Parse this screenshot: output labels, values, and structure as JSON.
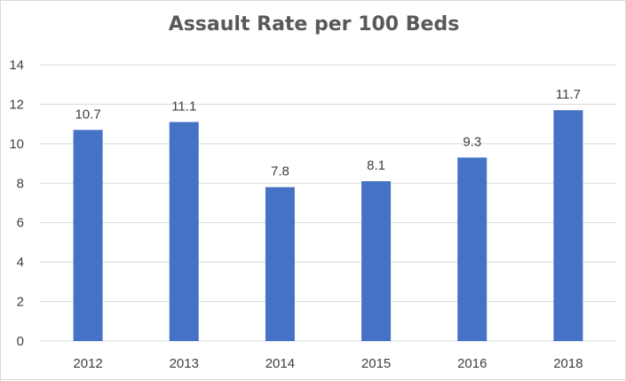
{
  "chart_data": {
    "type": "bar",
    "title": "Assault Rate per 100 Beds",
    "categories": [
      "2012",
      "2013",
      "2014",
      "2015",
      "2016",
      "2018"
    ],
    "values": [
      10.7,
      11.1,
      7.8,
      8.1,
      9.3,
      11.7
    ],
    "data_labels": [
      "10.7",
      "11.1",
      "7.8",
      "8.1",
      "9.3",
      "11.7"
    ],
    "xlabel": "",
    "ylabel": "",
    "ylim": [
      0,
      14
    ],
    "yticks": [
      0,
      2,
      4,
      6,
      8,
      10,
      12,
      14
    ],
    "grid": true,
    "legend": "none",
    "bar_color": "#4472C4",
    "grid_color": "#d9d9d9"
  }
}
